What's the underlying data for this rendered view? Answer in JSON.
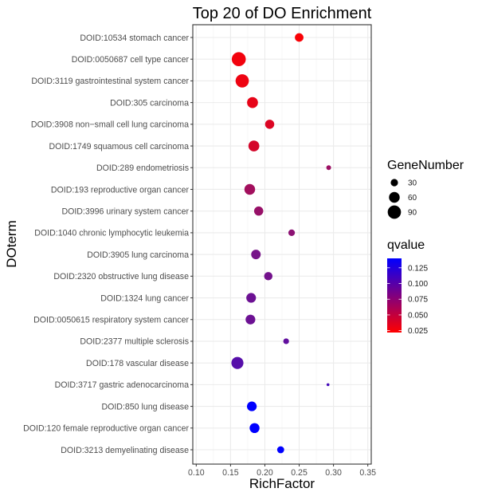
{
  "chart_data": {
    "type": "scatter",
    "title": "Top 20 of DO Enrichment",
    "xlabel": "RichFactor",
    "ylabel": "DOterm",
    "xlim": [
      0.095,
      0.355
    ],
    "xticks": [
      0.1,
      0.15,
      0.2,
      0.25,
      0.3,
      0.35
    ],
    "xtick_labels": [
      "0.10",
      "0.15",
      "0.20",
      "0.25",
      "0.30",
      "0.35"
    ],
    "grid": true,
    "terms": [
      {
        "label": "DOID:10534 stomach cancer",
        "richfactor": 0.25,
        "genenumber": 40,
        "qvalue": 0.025
      },
      {
        "label": "DOID:0050687 cell type cancer",
        "richfactor": 0.162,
        "genenumber": 100,
        "qvalue": 0.028
      },
      {
        "label": "DOID:3119 gastrointestinal system cancer",
        "richfactor": 0.167,
        "genenumber": 90,
        "qvalue": 0.03
      },
      {
        "label": "DOID:305 carcinoma",
        "richfactor": 0.182,
        "genenumber": 62,
        "qvalue": 0.033
      },
      {
        "label": "DOID:3908 non−small cell lung carcinoma",
        "richfactor": 0.207,
        "genenumber": 45,
        "qvalue": 0.038
      },
      {
        "label": "DOID:1749 squamous cell carcinoma",
        "richfactor": 0.184,
        "genenumber": 62,
        "qvalue": 0.042
      },
      {
        "label": "DOID:289 endometriosis",
        "richfactor": 0.293,
        "genenumber": 15,
        "qvalue": 0.068
      },
      {
        "label": "DOID:193 reproductive organ cancer",
        "richfactor": 0.178,
        "genenumber": 60,
        "qvalue": 0.065
      },
      {
        "label": "DOID:3996 urinary system cancer",
        "richfactor": 0.191,
        "genenumber": 45,
        "qvalue": 0.07
      },
      {
        "label": "DOID:1040 chronic lymphocytic leukemia",
        "richfactor": 0.239,
        "genenumber": 25,
        "qvalue": 0.075
      },
      {
        "label": "DOID:3905 lung carcinoma",
        "richfactor": 0.187,
        "genenumber": 48,
        "qvalue": 0.085
      },
      {
        "label": "DOID:2320 obstructive lung disease",
        "richfactor": 0.205,
        "genenumber": 38,
        "qvalue": 0.087
      },
      {
        "label": "DOID:1324 lung cancer",
        "richfactor": 0.18,
        "genenumber": 50,
        "qvalue": 0.09
      },
      {
        "label": "DOID:0050615 respiratory system cancer",
        "richfactor": 0.179,
        "genenumber": 50,
        "qvalue": 0.09
      },
      {
        "label": "DOID:2377 multiple sclerosis",
        "richfactor": 0.231,
        "genenumber": 20,
        "qvalue": 0.095
      },
      {
        "label": "DOID:178 vascular disease",
        "richfactor": 0.16,
        "genenumber": 75,
        "qvalue": 0.1
      },
      {
        "label": "DOID:3717 gastric adenocarcinoma",
        "richfactor": 0.292,
        "genenumber": 8,
        "qvalue": 0.108
      },
      {
        "label": "DOID:850 lung disease",
        "richfactor": 0.181,
        "genenumber": 50,
        "qvalue": 0.14
      },
      {
        "label": "DOID:120 female reproductive organ cancer",
        "richfactor": 0.185,
        "genenumber": 52,
        "qvalue": 0.14
      },
      {
        "label": "DOID:3213 demyelinating disease",
        "richfactor": 0.223,
        "genenumber": 28,
        "qvalue": 0.14
      }
    ],
    "size_legend": {
      "title": "GeneNumber",
      "breaks": [
        30,
        60,
        90
      ],
      "labels": [
        "30",
        "60",
        "90"
      ],
      "placement": "right"
    },
    "color_legend": {
      "title": "qvalue",
      "range": [
        0.022,
        0.14
      ],
      "low_color": "#ff0000",
      "high_color": "#0000ff",
      "breaks": [
        0.025,
        0.05,
        0.075,
        0.1,
        0.125
      ],
      "labels": [
        "0.025",
        "0.050",
        "0.075",
        "0.100",
        "0.125"
      ],
      "placement": "right"
    },
    "size_range_genes": [
      8,
      100
    ]
  }
}
